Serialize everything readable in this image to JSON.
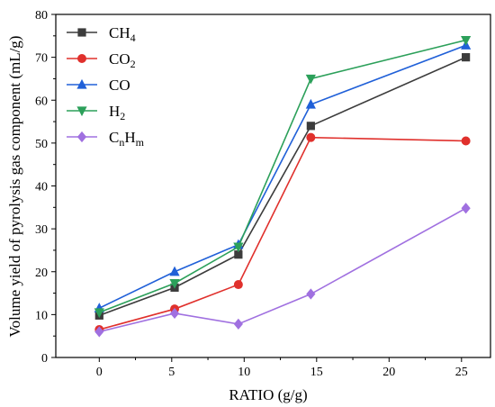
{
  "chart_data": {
    "type": "line",
    "xlabel": "RATIO (g/g)",
    "ylabel": "Volume yield of pyrolysis gas component (mL/g)",
    "xlim": [
      -3,
      27
    ],
    "ylim": [
      0,
      80
    ],
    "xticks": [
      0,
      5,
      10,
      15,
      20,
      25
    ],
    "yticks": [
      0,
      10,
      20,
      30,
      40,
      50,
      60,
      70,
      80
    ],
    "x": [
      0,
      5.2,
      9.6,
      14.6,
      25.3
    ],
    "grid": false,
    "legend_position": "top-left",
    "series": [
      {
        "name": "CH4",
        "label_base": "CH",
        "label_sub": "4",
        "label_base2": "",
        "label_sub2": "",
        "color": "#3c3c3c",
        "marker": "square",
        "values": [
          9.8,
          16.3,
          24.0,
          54.0,
          70.0
        ]
      },
      {
        "name": "CO2",
        "label_base": "CO",
        "label_sub": "2",
        "label_base2": "",
        "label_sub2": "",
        "color": "#e0302c",
        "marker": "circle",
        "values": [
          6.5,
          11.3,
          17.0,
          51.3,
          50.5
        ]
      },
      {
        "name": "CO",
        "label_base": "CO",
        "label_sub": "",
        "label_base2": "",
        "label_sub2": "",
        "color": "#2060d8",
        "marker": "triangle-up",
        "values": [
          11.5,
          20.0,
          26.3,
          59.0,
          72.8
        ]
      },
      {
        "name": "H2",
        "label_base": "H",
        "label_sub": "2",
        "label_base2": "",
        "label_sub2": "",
        "color": "#2ca05a",
        "marker": "triangle-down",
        "values": [
          10.5,
          17.3,
          25.8,
          65.0,
          74.0
        ]
      },
      {
        "name": "CnHm",
        "label_base": "C",
        "label_sub": "n",
        "label_base2": "H",
        "label_sub2": "m",
        "color": "#a070e0",
        "marker": "diamond",
        "values": [
          6.0,
          10.3,
          7.8,
          14.8,
          34.8
        ]
      }
    ]
  }
}
